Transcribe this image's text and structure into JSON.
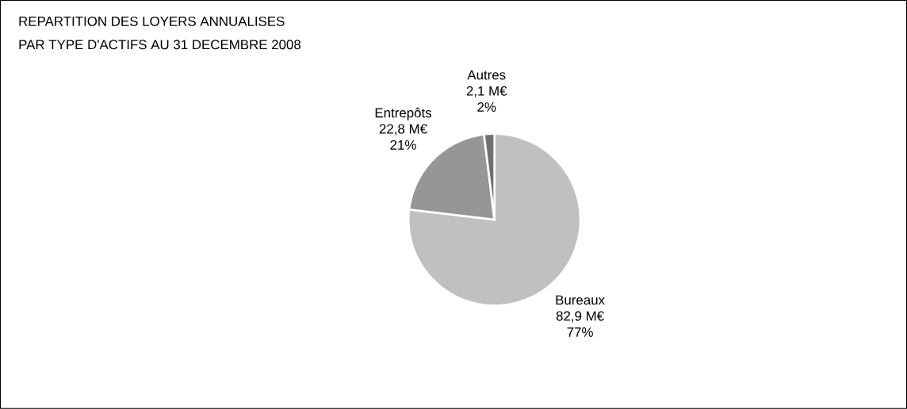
{
  "chart_data": {
    "type": "pie",
    "title": "REPARTITION DES LOYERS ANNUALISES",
    "subtitle": "PAR TYPE D'ACTIFS AU 31 DECEMBRE 2008",
    "categories": [
      "Bureaux",
      "Entrepôts",
      "Autres"
    ],
    "values": [
      82.9,
      22.8,
      2.1
    ],
    "value_labels": [
      "82,9 M€",
      "22,8 M€",
      "2,1 M€"
    ],
    "annotations": [
      "77%",
      "21%",
      "2%"
    ],
    "colors": [
      "#c0c0c0",
      "#969696",
      "#707070"
    ],
    "legend": false
  }
}
